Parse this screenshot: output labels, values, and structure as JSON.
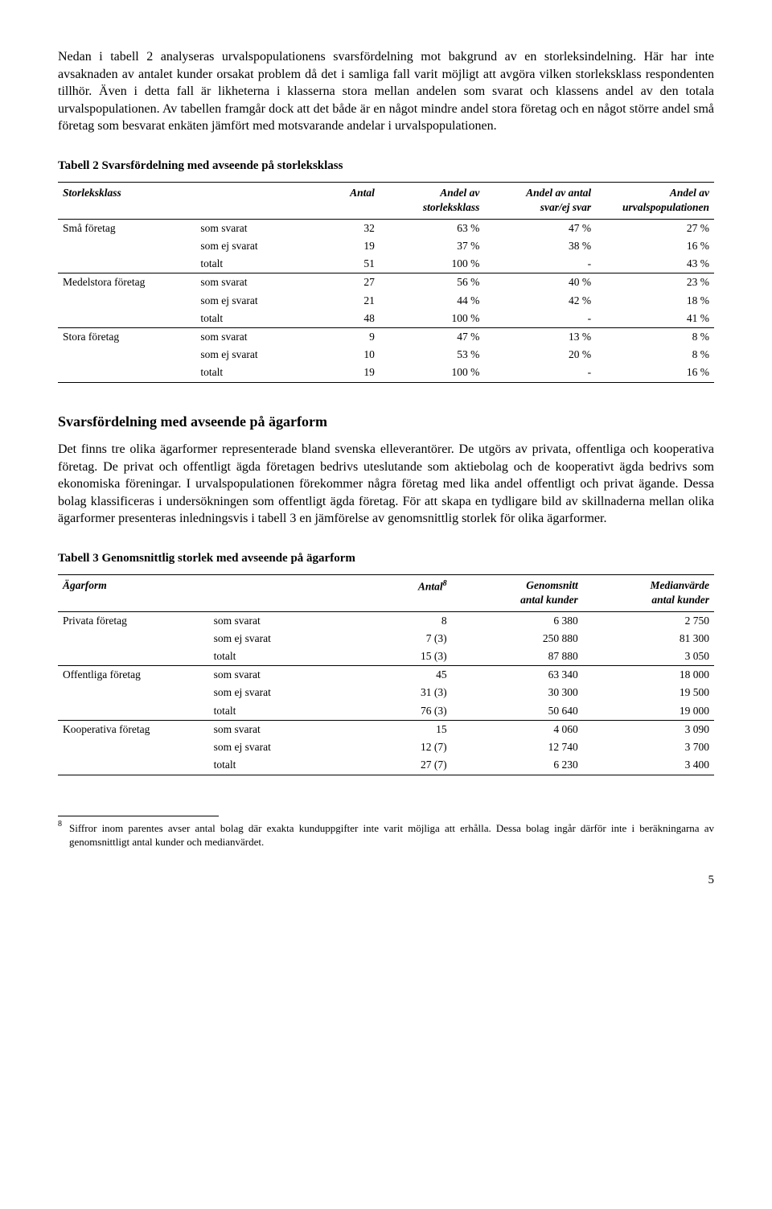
{
  "para1": "Nedan i tabell 2 analyseras urvalspopulationens svarsfördelning mot bakgrund av en storleksindelning. Här har inte avsaknaden av antalet kunder orsakat problem då det i samliga fall varit möjligt att avgöra vilken storleksklass respondenten tillhör. Även i detta fall är likheterna i klasserna stora mellan andelen som svarat och klassens andel av den totala urvalspopulationen. Av tabellen framgår dock att det både är en något mindre andel stora företag och en något större andel små företag som besvarat enkäten jämfört med motsvarande andelar i urvalspopulationen.",
  "table2": {
    "title": "Tabell 2   Svarsfördelning med avseende på storleksklass",
    "columns": {
      "c1": "Storleksklass",
      "c2": "",
      "c3": "Antal",
      "c4a": "Andel av",
      "c4b": "storleksklass",
      "c5a": "Andel av antal",
      "c5b": "svar/ej svar",
      "c6a": "Andel av",
      "c6b": "urvalspopulationen"
    },
    "groups": [
      {
        "label": "Små företag",
        "rows": [
          {
            "resp": "som svarat",
            "antal": "32",
            "andel_sk": "63 %",
            "andel_svar": "47 %",
            "andel_pop": "27 %"
          },
          {
            "resp": "som ej svarat",
            "antal": "19",
            "andel_sk": "37 %",
            "andel_svar": "38 %",
            "andel_pop": "16 %"
          },
          {
            "resp": "totalt",
            "antal": "51",
            "andel_sk": "100 %",
            "andel_svar": "-",
            "andel_pop": "43 %"
          }
        ]
      },
      {
        "label": "Medelstora företag",
        "rows": [
          {
            "resp": "som svarat",
            "antal": "27",
            "andel_sk": "56 %",
            "andel_svar": "40 %",
            "andel_pop": "23 %"
          },
          {
            "resp": "som ej svarat",
            "antal": "21",
            "andel_sk": "44 %",
            "andel_svar": "42 %",
            "andel_pop": "18 %"
          },
          {
            "resp": "totalt",
            "antal": "48",
            "andel_sk": "100 %",
            "andel_svar": "-",
            "andel_pop": "41 %"
          }
        ]
      },
      {
        "label": "Stora företag",
        "rows": [
          {
            "resp": "som svarat",
            "antal": "9",
            "andel_sk": "47 %",
            "andel_svar": "13 %",
            "andel_pop": "8 %"
          },
          {
            "resp": "som ej svarat",
            "antal": "10",
            "andel_sk": "53 %",
            "andel_svar": "20 %",
            "andel_pop": "8 %"
          },
          {
            "resp": "totalt",
            "antal": "19",
            "andel_sk": "100 %",
            "andel_svar": "-",
            "andel_pop": "16 %"
          }
        ]
      }
    ]
  },
  "section_title": "Svarsfördelning med avseende på ägarform",
  "para2": "Det finns tre olika ägarformer representerade bland svenska elleverantörer. De utgörs av privata, offentliga och kooperativa företag. De privat och offentligt ägda företagen bedrivs uteslutande som aktiebolag och de kooperativt ägda bedrivs som ekonomiska föreningar. I urvalspopulationen förekommer några företag med lika andel offentligt och privat ägande. Dessa bolag klassificeras i undersökningen som offentligt ägda företag. För att skapa en tydligare bild av skillnaderna mellan olika ägarformer presenteras inledningsvis i tabell 3 en jämförelse av genomsnittlig storlek för olika ägarformer.",
  "table3": {
    "title": "Tabell 3   Genomsnittlig storlek med avseende på ägarform",
    "columns": {
      "c1": "Ägarform",
      "c2": "",
      "c3a": "Antal",
      "c3sup": "8",
      "c4a": "Genomsnitt",
      "c4b": "antal kunder",
      "c5a": "Medianvärde",
      "c5b": "antal kunder"
    },
    "groups": [
      {
        "label": "Privata företag",
        "rows": [
          {
            "resp": "som svarat",
            "antal": "8",
            "genom": "6 380",
            "median": "2 750"
          },
          {
            "resp": "som ej svarat",
            "antal": "7 (3)",
            "genom": "250 880",
            "median": "81 300"
          },
          {
            "resp": "totalt",
            "antal": "15 (3)",
            "genom": "87 880",
            "median": "3 050"
          }
        ]
      },
      {
        "label": "Offentliga företag",
        "rows": [
          {
            "resp": "som svarat",
            "antal": "45",
            "genom": "63 340",
            "median": "18 000"
          },
          {
            "resp": "som ej svarat",
            "antal": "31 (3)",
            "genom": "30 300",
            "median": "19 500"
          },
          {
            "resp": "totalt",
            "antal": "76 (3)",
            "genom": "50 640",
            "median": "19 000"
          }
        ]
      },
      {
        "label": "Kooperativa företag",
        "rows": [
          {
            "resp": "som svarat",
            "antal": "15",
            "genom": "4 060",
            "median": "3 090"
          },
          {
            "resp": "som ej svarat",
            "antal": "12 (7)",
            "genom": "12 740",
            "median": "3 700"
          },
          {
            "resp": "totalt",
            "antal": "27 (7)",
            "genom": "6 230",
            "median": "3 400"
          }
        ]
      }
    ]
  },
  "footnote": {
    "num": "8",
    "text": "Siffror inom parentes avser antal bolag där exakta kunduppgifter inte varit möjliga att erhålla. Dessa bolag ingår därför inte i beräkningarna av genomsnittligt antal kunder och medianvärdet."
  },
  "page_number": "5"
}
